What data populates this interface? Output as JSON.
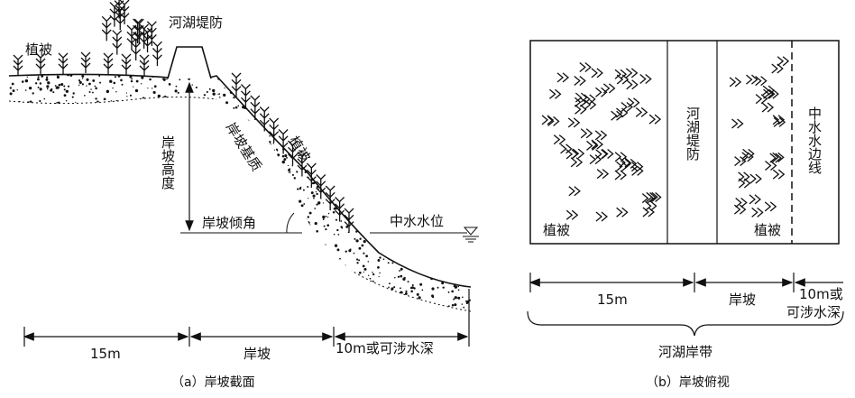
{
  "panel_a": {
    "caption": "（a）岸坡截面",
    "dike": "河湖堤防",
    "vegetation_top": "植被",
    "vegetation_slope": "植被",
    "slope_height": "岸坡高度",
    "slope_substrate": "岸坡基质",
    "slope_angle": "岸坡倾角",
    "mid_water_level": "中水水位",
    "dimensions": [
      "15m",
      "岸坡",
      "10m或可涉水深"
    ]
  },
  "panel_b": {
    "caption": "（b）岸坡俯视",
    "vegetation_left": "植被",
    "dike": "河湖堤防",
    "vegetation_right": "植被",
    "mid_water_edge": "中水水边线",
    "dimensions": [
      "15m",
      "岸坡",
      "10m或",
      "可涉水深"
    ],
    "zone": "河湖岸带"
  }
}
